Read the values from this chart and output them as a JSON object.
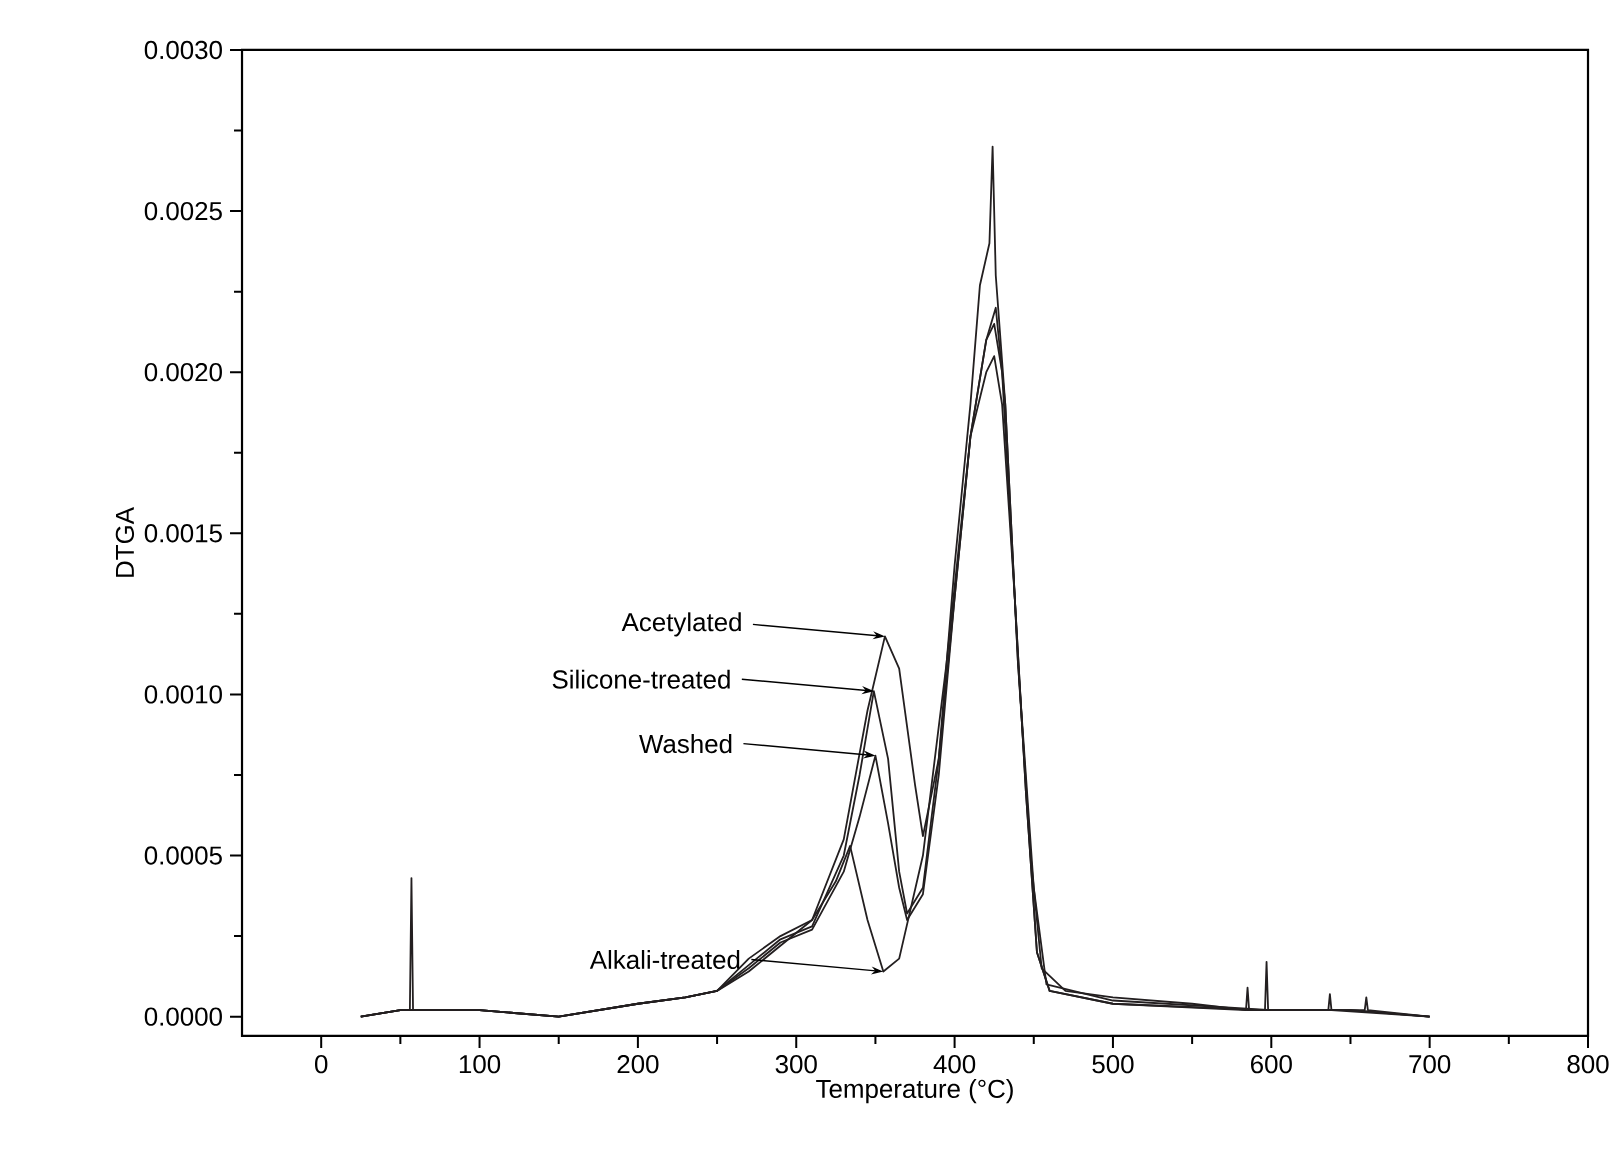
{
  "chart_data": {
    "type": "line",
    "xlabel": "Temperature (°C)",
    "ylabel": "DTGA",
    "xlim": [
      -50,
      800
    ],
    "ylim": [
      -6e-05,
      0.003
    ],
    "xticks": [
      0,
      100,
      200,
      300,
      400,
      500,
      600,
      700,
      800
    ],
    "yticks": [
      {
        "value": 0,
        "label": "0.0000"
      },
      {
        "value": 0.0005,
        "label": "0.0005"
      },
      {
        "value": 0.001,
        "label": "0.0010"
      },
      {
        "value": 0.0015,
        "label": "0.0015"
      },
      {
        "value": 0.002,
        "label": "0.0020"
      },
      {
        "value": 0.0025,
        "label": "0.0025"
      },
      {
        "value": 0.003,
        "label": "0.0030"
      }
    ],
    "line_style": "solid",
    "series": [
      {
        "color": "#231f20",
        "x": [
          25,
          50,
          100,
          150,
          200,
          230,
          250,
          270,
          290,
          310,
          330,
          345,
          356,
          365,
          375,
          380,
          390,
          400,
          410,
          416,
          422,
          424,
          426,
          432,
          440,
          448,
          455,
          470,
          500,
          550,
          585,
          600,
          650,
          700
        ],
        "values": [
          0,
          2e-05,
          2e-05,
          0,
          4e-05,
          6e-05,
          8e-05,
          0.00014,
          0.00022,
          0.0003,
          0.00055,
          0.00095,
          0.00118,
          0.00108,
          0.00072,
          0.00056,
          0.0008,
          0.0014,
          0.0019,
          0.00227,
          0.0024,
          0.0027,
          0.0023,
          0.0019,
          0.0011,
          0.0005,
          0.00015,
          8e-05,
          6e-05,
          4e-05,
          2e-05,
          2e-05,
          2e-05,
          0
        ]
      },
      {
        "color": "#231f20",
        "x": [
          25,
          50,
          100,
          150,
          200,
          230,
          250,
          270,
          290,
          310,
          330,
          340,
          349,
          358,
          365,
          370,
          380,
          390,
          400,
          410,
          420,
          425,
          430,
          438,
          445,
          452,
          460,
          500,
          596,
          597,
          598,
          600,
          650,
          700
        ],
        "values": [
          0,
          2e-05,
          2e-05,
          0,
          4e-05,
          6e-05,
          8e-05,
          0.00016,
          0.00024,
          0.00028,
          0.0005,
          0.00075,
          0.00101,
          0.0008,
          0.00045,
          0.00032,
          0.0004,
          0.0008,
          0.0013,
          0.0018,
          0.0021,
          0.00215,
          0.002,
          0.0013,
          0.0007,
          0.0002,
          8e-05,
          4e-05,
          2e-05,
          0.00017,
          2e-05,
          2e-05,
          2e-05,
          0
        ]
      },
      {
        "color": "#231f20",
        "x": [
          25,
          50,
          100,
          150,
          200,
          230,
          250,
          270,
          290,
          310,
          330,
          340,
          350,
          358,
          365,
          370,
          380,
          390,
          400,
          410,
          420,
          425,
          430,
          438,
          445,
          452,
          460,
          500,
          584,
          585,
          586,
          600,
          636,
          637,
          638,
          700
        ],
        "values": [
          0,
          2e-05,
          2e-05,
          0,
          4e-05,
          6e-05,
          8e-05,
          0.00015,
          0.00023,
          0.00027,
          0.00045,
          0.00062,
          0.00081,
          0.0006,
          0.0004,
          0.0003,
          0.00038,
          0.00075,
          0.0013,
          0.0018,
          0.002,
          0.00205,
          0.0019,
          0.0013,
          0.0007,
          0.0002,
          8e-05,
          4e-05,
          2e-05,
          9e-05,
          2e-05,
          2e-05,
          2e-05,
          7e-05,
          2e-05,
          0
        ]
      },
      {
        "color": "#231f20",
        "x": [
          25,
          50,
          56,
          57,
          58,
          100,
          150,
          200,
          230,
          250,
          270,
          290,
          310,
          325,
          334,
          345,
          355,
          365,
          380,
          395,
          410,
          420,
          426,
          432,
          440,
          450,
          458,
          500,
          600,
          659,
          660,
          661,
          700
        ],
        "values": [
          0,
          2e-05,
          2e-05,
          0.00043,
          2e-05,
          2e-05,
          0,
          4e-05,
          6e-05,
          8e-05,
          0.00018,
          0.00025,
          0.0003,
          0.00042,
          0.00053,
          0.0003,
          0.00014,
          0.00018,
          0.0005,
          0.0011,
          0.0018,
          0.0021,
          0.0022,
          0.0019,
          0.0011,
          0.0004,
          0.0001,
          5e-05,
          2e-05,
          2e-05,
          6e-05,
          2e-05,
          0
        ]
      }
    ],
    "annotations": [
      {
        "text": "Acetylated",
        "x": 356,
        "y": 0.00118
      },
      {
        "text": "Silicone-treated",
        "x": 349,
        "y": 0.00101
      },
      {
        "text": "Washed",
        "x": 350,
        "y": 0.00081
      },
      {
        "text": "Alkali-treated",
        "x": 355,
        "y": 0.00014
      }
    ]
  }
}
